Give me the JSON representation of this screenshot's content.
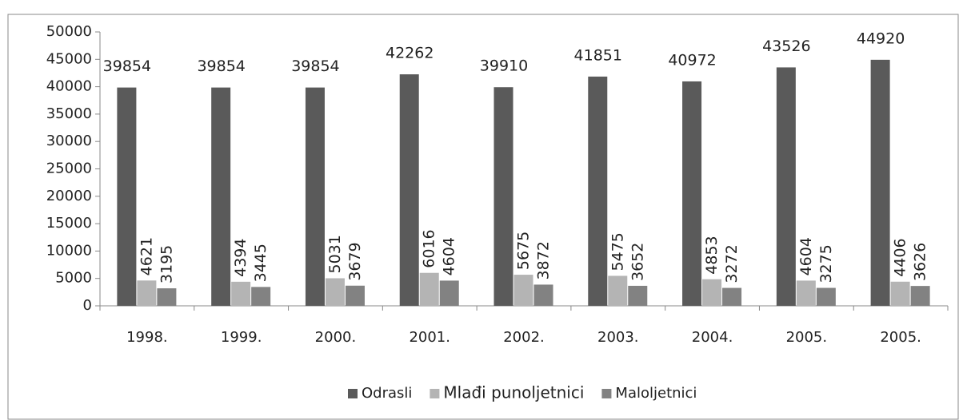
{
  "chart_data": {
    "type": "bar",
    "categories": [
      "1998.",
      "1999.",
      "2000.",
      "2001.",
      "2002.",
      "2003.",
      "2004.",
      "2005.",
      "2005."
    ],
    "series": [
      {
        "name": "Odrasli",
        "color": "#5a5a5a",
        "values": [
          39854,
          39854,
          39854,
          42262,
          39910,
          41851,
          40972,
          43526,
          44920
        ]
      },
      {
        "name": "Mlađi punoljetnici",
        "color": "#b4b4b4",
        "values": [
          4621,
          4394,
          5031,
          6016,
          5675,
          5475,
          4853,
          4604,
          4406
        ]
      },
      {
        "name": "Maloljetnici",
        "color": "#828282",
        "values": [
          3195,
          3445,
          3679,
          4604,
          3872,
          3652,
          3272,
          3275,
          3626
        ]
      }
    ],
    "ylim": [
      0,
      50000
    ],
    "yticks": [
      0,
      5000,
      10000,
      15000,
      20000,
      25000,
      30000,
      35000,
      40000,
      45000,
      50000
    ],
    "grid": false,
    "legend": "bottom"
  }
}
